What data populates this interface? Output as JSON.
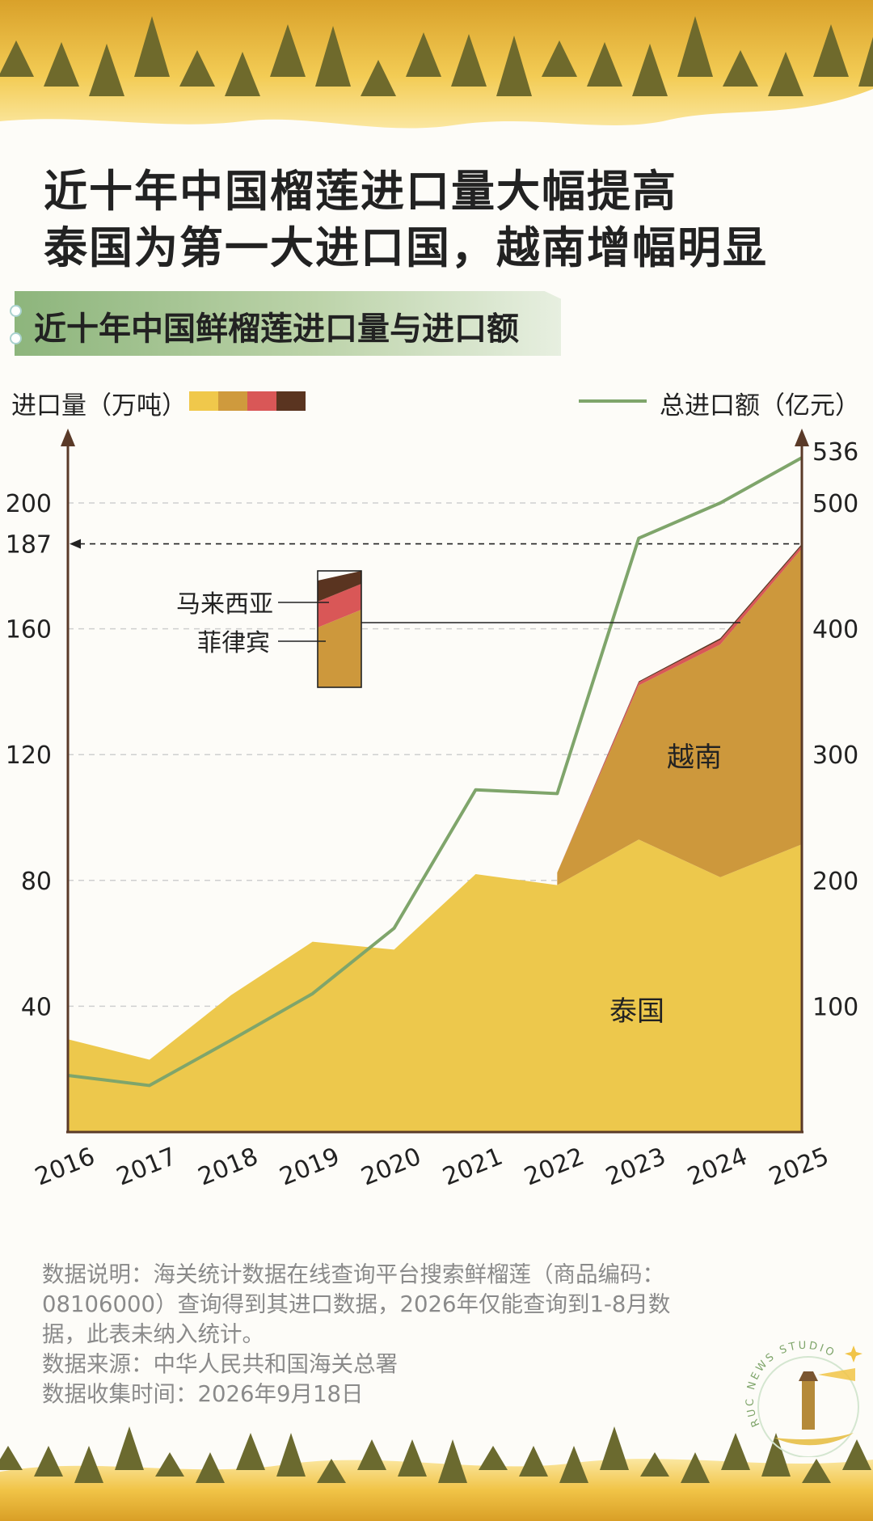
{
  "title_lines": [
    "近十年中国榴莲进口量大幅提高",
    "泰国为第一大进口国，越南增幅明显"
  ],
  "subtitle": "近十年中国鲜榴莲进口量与进口额",
  "legend": {
    "left_label": "进口量（万吨）",
    "right_label": "总进口额（亿元）",
    "swatch_colors": [
      "#f0c84b",
      "#cf9a3d",
      "#d95757",
      "#5a3420"
    ]
  },
  "colors": {
    "thailand": "#edc84c",
    "vietnam": "#cd983c",
    "philippines": "#d95757",
    "malaysia": "#5a3420",
    "line": "#7fa56b",
    "axis": "#5a3a28"
  },
  "chart_data": {
    "type": "area",
    "x": [
      "2016",
      "2017",
      "2018",
      "2019",
      "2020",
      "2021",
      "2022",
      "2023",
      "2024",
      "2025"
    ],
    "series": [
      {
        "name": "泰国",
        "axis": "left",
        "values": [
          29.5,
          23,
          43.5,
          60.5,
          58,
          82,
          78.5,
          93,
          81,
          91.5
        ]
      },
      {
        "name": "越南",
        "axis": "left",
        "values": [
          null,
          null,
          null,
          null,
          null,
          null,
          4,
          49,
          74,
          94
        ]
      },
      {
        "name": "菲律宾",
        "axis": "left",
        "values": [
          null,
          null,
          null,
          null,
          null,
          null,
          0,
          1,
          1.5,
          1
        ]
      },
      {
        "name": "马来西亚",
        "axis": "left",
        "values": [
          null,
          null,
          null,
          null,
          null,
          null,
          0,
          0.3,
          0.5,
          0.5
        ]
      },
      {
        "name": "总进口额",
        "axis": "right",
        "type": "line",
        "values": [
          45,
          37,
          73,
          110,
          162,
          272,
          269,
          472,
          500,
          536
        ]
      }
    ],
    "left_axis": {
      "label": "进口量（万吨）",
      "ticks": [
        40,
        80,
        120,
        160,
        187,
        200
      ],
      "range": [
        0,
        230
      ]
    },
    "right_axis": {
      "label": "总进口额（亿元）",
      "ticks": [
        100,
        200,
        300,
        400,
        500,
        536
      ],
      "range": [
        0,
        575
      ]
    },
    "reference_line": {
      "value": 187,
      "axis": "left",
      "style": "dashed"
    },
    "annotations": [
      "马来西亚",
      "菲律宾",
      "越南",
      "泰国"
    ],
    "grid": true
  },
  "footnote": {
    "lines": [
      "数据说明：海关统计数据在线查询平台搜索鲜榴莲（商品编码：",
      "08106000）查询得到其进口数据，2026年仅能查询到1-8月数",
      "据，此表未纳入统计。",
      "数据来源：中华人民共和国海关总署",
      "数据收集时间：2026年9月18日"
    ]
  },
  "logo_text": "RUC NEWS STUDIO"
}
